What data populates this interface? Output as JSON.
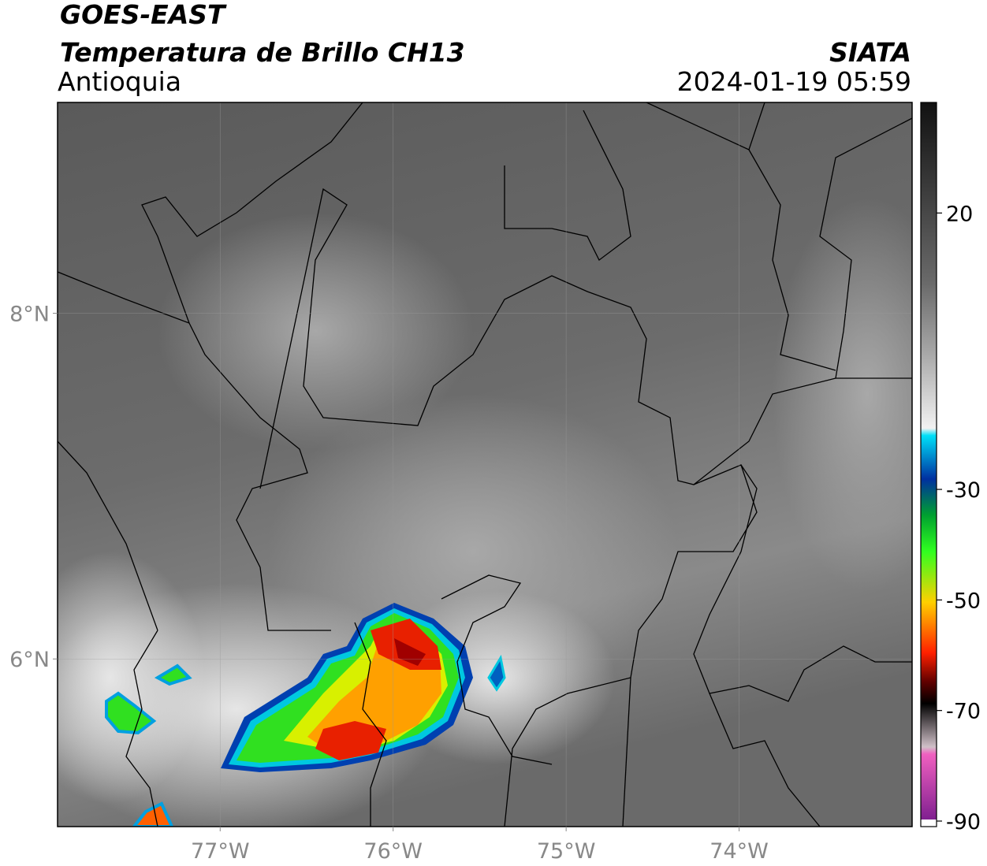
{
  "header": {
    "title": "GOES-EAST",
    "subtitle": "Temperatura de Brillo CH13",
    "region": "Antioquia",
    "source": "SIATA",
    "datetime": "2024-01-19 05:59"
  },
  "map": {
    "xlim": [
      -77.94,
      -73.0
    ],
    "ylim": [
      5.03,
      9.22
    ],
    "xticks": [
      {
        "value": -77,
        "label": "77°W"
      },
      {
        "value": -76,
        "label": "76°W"
      },
      {
        "value": -75,
        "label": "75°W"
      },
      {
        "value": -74,
        "label": "74°W"
      }
    ],
    "yticks": [
      {
        "value": 8,
        "label": "8°N"
      },
      {
        "value": 6,
        "label": "6°N"
      }
    ],
    "grid": true
  },
  "colorbar": {
    "clim": [
      -91,
      40
    ],
    "ticks": [
      20,
      -30,
      -50,
      -70,
      -90
    ]
  }
}
